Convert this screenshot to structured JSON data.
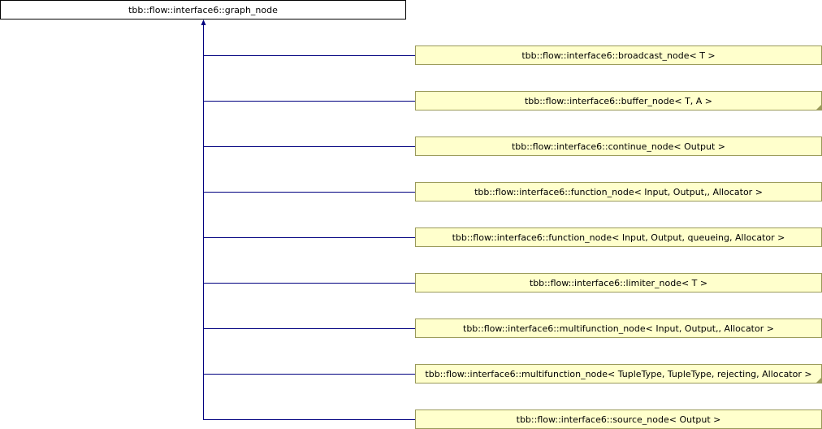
{
  "root": {
    "label": "tbb::flow::interface6::graph_node"
  },
  "children": [
    {
      "label": "tbb::flow::interface6::broadcast_node< T >",
      "truncated": false
    },
    {
      "label": "tbb::flow::interface6::buffer_node< T, A >",
      "truncated": true
    },
    {
      "label": "tbb::flow::interface6::continue_node< Output >",
      "truncated": false
    },
    {
      "label": "tbb::flow::interface6::function_node< Input, Output,, Allocator >",
      "truncated": false
    },
    {
      "label": "tbb::flow::interface6::function_node< Input, Output, queueing, Allocator >",
      "truncated": false
    },
    {
      "label": "tbb::flow::interface6::limiter_node< T >",
      "truncated": false
    },
    {
      "label": "tbb::flow::interface6::multifunction_node< Input, Output,, Allocator >",
      "truncated": false
    },
    {
      "label": "tbb::flow::interface6::multifunction_node< TupleType, TupleType, rejecting, Allocator >",
      "truncated": true
    },
    {
      "label": "tbb::flow::interface6::source_node< Output >",
      "truncated": false
    }
  ],
  "colors": {
    "edge": "#000080",
    "node_fill": "#ffffcc",
    "node_border": "#9a9a5a"
  }
}
